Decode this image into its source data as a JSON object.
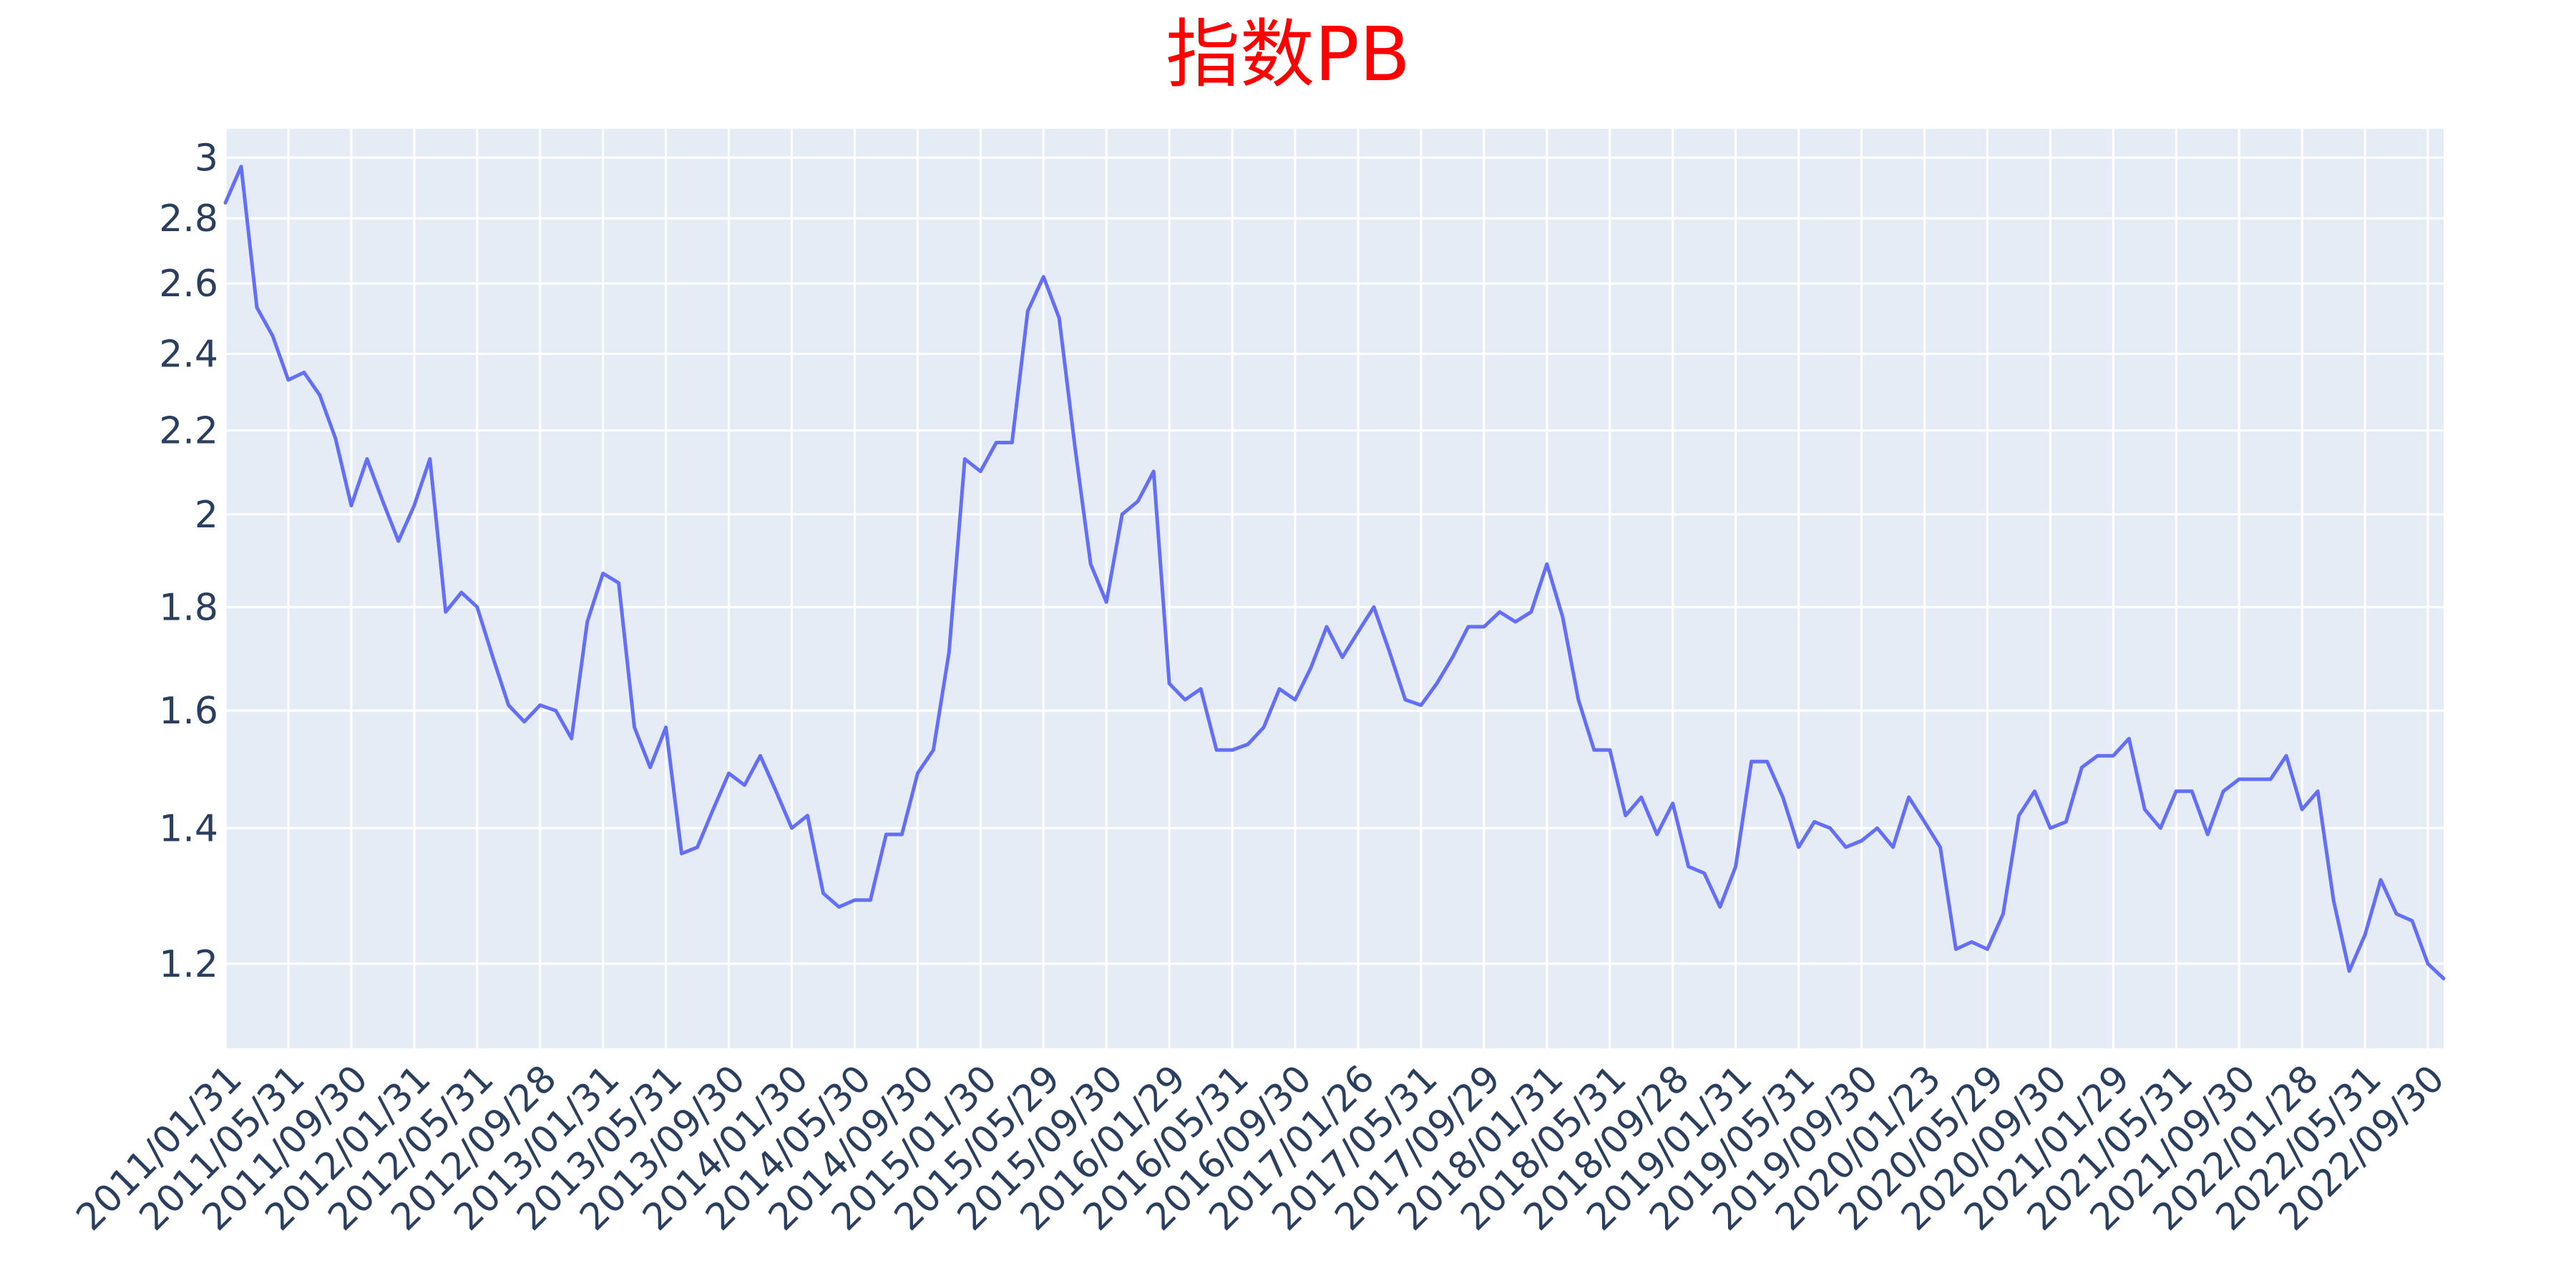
{
  "colors": {
    "title": "#ff0000",
    "line": "#636efa",
    "plot_bg": "#e5ecf6",
    "grid": "#ffffff",
    "tick_text": "#2a3f5f"
  },
  "chart_data": {
    "type": "line",
    "title": "指数PB",
    "xlabel": "",
    "ylabel": "",
    "y_scale": "log",
    "grid": true,
    "legend": "none",
    "ylim": [
      1.09,
      3.1
    ],
    "x_ticks": [
      "2011/01/31",
      "2011/05/31",
      "2011/09/30",
      "2012/01/31",
      "2012/05/31",
      "2012/09/28",
      "2013/01/31",
      "2013/05/31",
      "2013/09/30",
      "2014/01/30",
      "2014/05/30",
      "2014/09/30",
      "2015/01/30",
      "2015/05/29",
      "2015/09/30",
      "2016/01/29",
      "2016/05/31",
      "2016/09/30",
      "2017/01/26",
      "2017/05/31",
      "2017/09/29",
      "2018/01/31",
      "2018/05/31",
      "2018/09/28",
      "2019/01/31",
      "2019/05/31",
      "2019/09/30",
      "2020/01/23",
      "2020/05/29",
      "2020/09/30",
      "2021/01/29",
      "2021/05/31",
      "2021/09/30",
      "2022/01/28",
      "2022/05/31",
      "2022/09/30"
    ],
    "y_ticks": [
      1.2,
      1.4,
      1.6,
      1.8,
      2,
      2.2,
      2.4,
      2.6,
      2.8,
      3
    ],
    "y_tick_labels": [
      "1.2",
      "1.4",
      "1.6",
      "1.8",
      "2",
      "2.2",
      "2.4",
      "2.6",
      "2.8",
      "3"
    ],
    "series": [
      {
        "values": [
          2.85,
          2.97,
          2.53,
          2.45,
          2.33,
          2.35,
          2.29,
          2.18,
          2.02,
          2.13,
          2.03,
          1.94,
          2.02,
          2.13,
          1.79,
          1.83,
          1.8,
          1.7,
          1.61,
          1.58,
          1.61,
          1.6,
          1.55,
          1.77,
          1.87,
          1.85,
          1.57,
          1.5,
          1.57,
          1.36,
          1.37,
          1.43,
          1.49,
          1.47,
          1.52,
          1.46,
          1.4,
          1.42,
          1.3,
          1.28,
          1.29,
          1.29,
          1.39,
          1.39,
          1.49,
          1.53,
          1.71,
          2.13,
          2.1,
          2.17,
          2.17,
          2.52,
          2.62,
          2.5,
          2.16,
          1.89,
          1.81,
          2,
          2.03,
          2.1,
          1.65,
          1.62,
          1.64,
          1.53,
          1.53,
          1.54,
          1.57,
          1.64,
          1.62,
          1.68,
          1.76,
          1.7,
          1.75,
          1.8,
          1.71,
          1.62,
          1.61,
          1.65,
          1.7,
          1.76,
          1.76,
          1.79,
          1.77,
          1.79,
          1.89,
          1.78,
          1.62,
          1.53,
          1.53,
          1.42,
          1.45,
          1.39,
          1.44,
          1.34,
          1.33,
          1.28,
          1.34,
          1.51,
          1.51,
          1.45,
          1.37,
          1.41,
          1.4,
          1.37,
          1.38,
          1.4,
          1.37,
          1.45,
          1.41,
          1.37,
          1.22,
          1.23,
          1.22,
          1.27,
          1.42,
          1.46,
          1.4,
          1.41,
          1.5,
          1.52,
          1.52,
          1.55,
          1.43,
          1.4,
          1.46,
          1.46,
          1.39,
          1.46,
          1.48,
          1.48,
          1.48,
          1.52,
          1.43,
          1.46,
          1.29,
          1.19,
          1.24,
          1.32,
          1.27,
          1.26,
          1.2,
          1.18
        ]
      }
    ]
  }
}
